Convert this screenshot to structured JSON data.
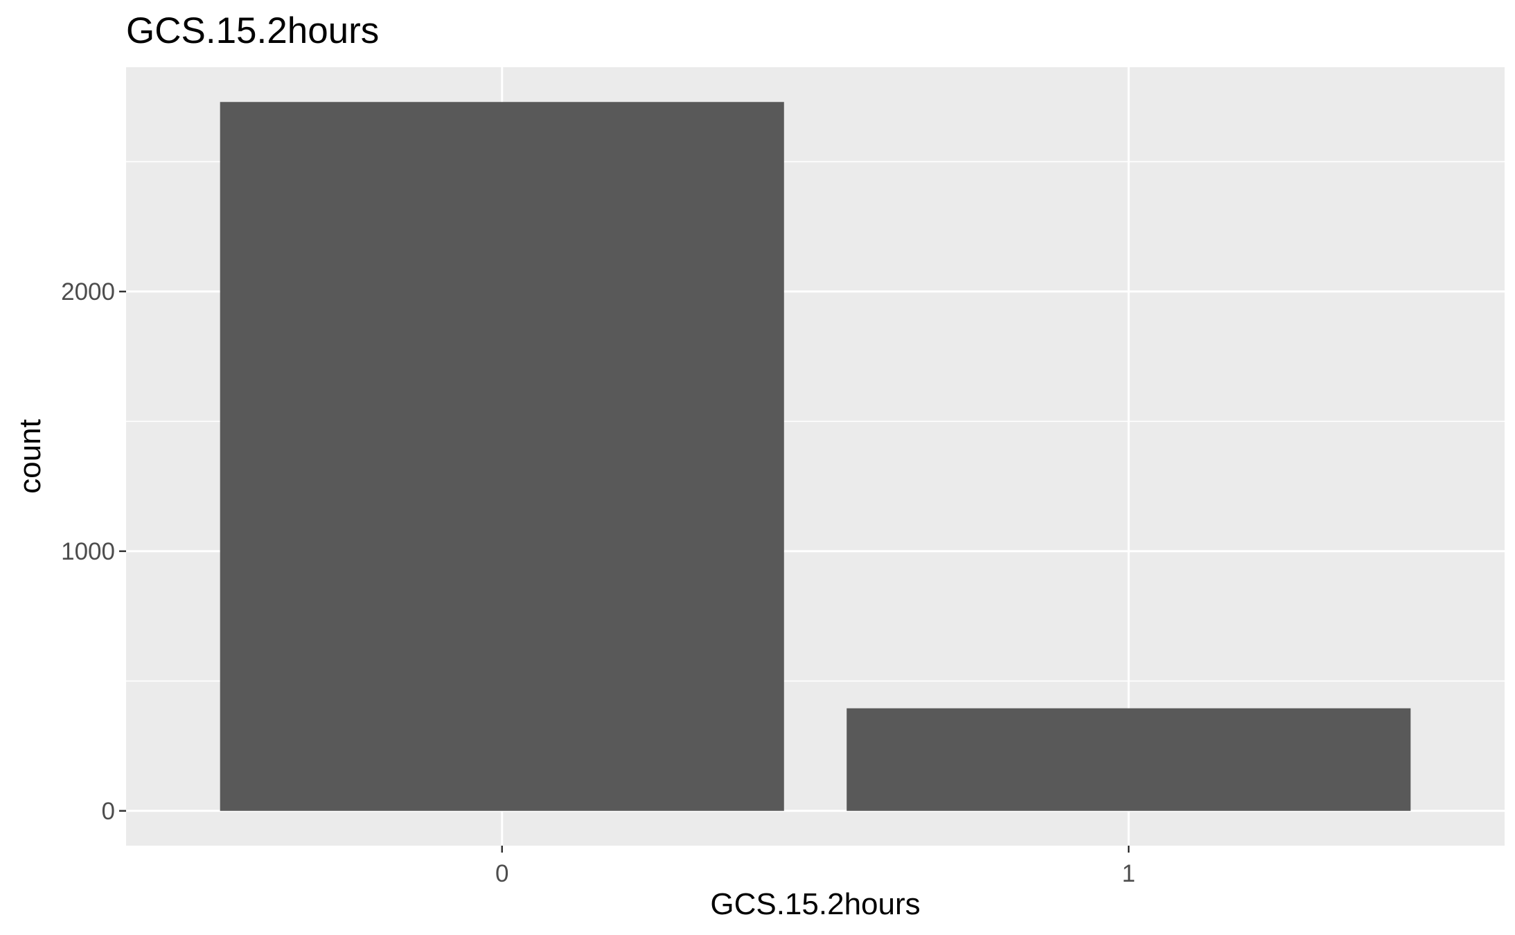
{
  "chart_data": {
    "type": "bar",
    "title": "GCS.15.2hours",
    "xlabel": "GCS.15.2hours",
    "ylabel": "count",
    "categories": [
      "0",
      "1"
    ],
    "values": [
      2730,
      395
    ],
    "ylim": [
      -134,
      2864
    ],
    "yticks": [
      0,
      1000,
      2000
    ],
    "ytick_labels": [
      "0",
      "1000",
      "2000"
    ],
    "grid": true,
    "legend": "none",
    "colors": {
      "panel_background": "#ebebeb",
      "grid": "#ffffff",
      "bar_fill": "#595959",
      "tick": "#333333",
      "tick_label": "#4d4d4d",
      "text": "#000000"
    }
  }
}
